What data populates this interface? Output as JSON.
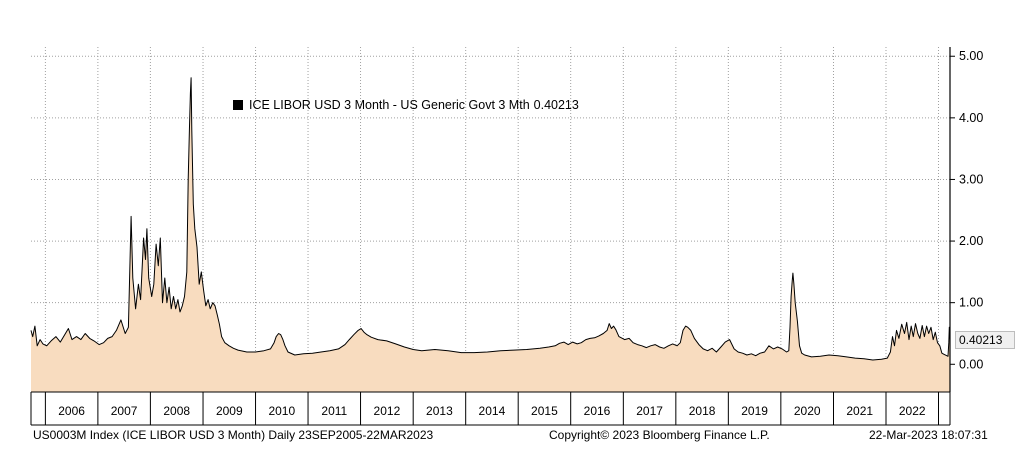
{
  "chart_data": {
    "type": "area",
    "series": [
      {
        "name": "ICE LIBOR USD 3 Month - US Generic Govt 3 Mth",
        "last_value": "0.40213",
        "points": [
          [
            "2005-09-23",
            0.55
          ],
          [
            "2005-10-05",
            0.45
          ],
          [
            "2005-10-20",
            0.62
          ],
          [
            "2005-11-05",
            0.3
          ],
          [
            "2005-11-25",
            0.4
          ],
          [
            "2005-12-15",
            0.33
          ],
          [
            "2006-01-10",
            0.3
          ],
          [
            "2006-02-10",
            0.38
          ],
          [
            "2006-03-15",
            0.45
          ],
          [
            "2006-04-15",
            0.36
          ],
          [
            "2006-05-15",
            0.48
          ],
          [
            "2006-06-10",
            0.58
          ],
          [
            "2006-07-05",
            0.4
          ],
          [
            "2006-08-05",
            0.45
          ],
          [
            "2006-09-05",
            0.4
          ],
          [
            "2006-10-05",
            0.5
          ],
          [
            "2006-11-05",
            0.42
          ],
          [
            "2006-12-05",
            0.38
          ],
          [
            "2007-01-10",
            0.32
          ],
          [
            "2007-02-10",
            0.35
          ],
          [
            "2007-03-10",
            0.42
          ],
          [
            "2007-04-10",
            0.45
          ],
          [
            "2007-05-10",
            0.55
          ],
          [
            "2007-06-10",
            0.72
          ],
          [
            "2007-07-10",
            0.5
          ],
          [
            "2007-08-01",
            0.6
          ],
          [
            "2007-08-20",
            2.4
          ],
          [
            "2007-09-01",
            1.4
          ],
          [
            "2007-09-20",
            0.9
          ],
          [
            "2007-10-10",
            1.3
          ],
          [
            "2007-10-25",
            1.05
          ],
          [
            "2007-11-15",
            2.05
          ],
          [
            "2007-11-28",
            1.7
          ],
          [
            "2007-12-08",
            2.2
          ],
          [
            "2007-12-20",
            1.4
          ],
          [
            "2008-01-10",
            1.1
          ],
          [
            "2008-01-25",
            1.3
          ],
          [
            "2008-02-10",
            1.95
          ],
          [
            "2008-02-25",
            1.6
          ],
          [
            "2008-03-10",
            2.05
          ],
          [
            "2008-03-25",
            1.0
          ],
          [
            "2008-04-10",
            1.4
          ],
          [
            "2008-04-25",
            1.0
          ],
          [
            "2008-05-10",
            1.25
          ],
          [
            "2008-05-25",
            0.9
          ],
          [
            "2008-06-10",
            1.1
          ],
          [
            "2008-06-25",
            0.9
          ],
          [
            "2008-07-10",
            1.05
          ],
          [
            "2008-07-25",
            0.85
          ],
          [
            "2008-08-10",
            0.95
          ],
          [
            "2008-08-25",
            1.1
          ],
          [
            "2008-09-10",
            1.5
          ],
          [
            "2008-09-20",
            3.0
          ],
          [
            "2008-09-28",
            3.8
          ],
          [
            "2008-10-05",
            4.4
          ],
          [
            "2008-10-10",
            4.65
          ],
          [
            "2008-10-15",
            3.8
          ],
          [
            "2008-10-25",
            2.6
          ],
          [
            "2008-11-05",
            2.2
          ],
          [
            "2008-11-20",
            1.9
          ],
          [
            "2008-12-05",
            1.3
          ],
          [
            "2008-12-20",
            1.5
          ],
          [
            "2009-01-05",
            1.2
          ],
          [
            "2009-01-20",
            0.95
          ],
          [
            "2009-02-05",
            1.05
          ],
          [
            "2009-02-20",
            0.9
          ],
          [
            "2009-03-10",
            1.0
          ],
          [
            "2009-03-25",
            0.95
          ],
          [
            "2009-04-10",
            0.8
          ],
          [
            "2009-04-25",
            0.65
          ],
          [
            "2009-05-10",
            0.45
          ],
          [
            "2009-06-01",
            0.35
          ],
          [
            "2009-07-01",
            0.3
          ],
          [
            "2009-08-01",
            0.26
          ],
          [
            "2009-09-01",
            0.23
          ],
          [
            "2009-11-01",
            0.2
          ],
          [
            "2010-01-01",
            0.2
          ],
          [
            "2010-03-01",
            0.22
          ],
          [
            "2010-04-15",
            0.25
          ],
          [
            "2010-05-10",
            0.35
          ],
          [
            "2010-05-25",
            0.45
          ],
          [
            "2010-06-10",
            0.5
          ],
          [
            "2010-06-25",
            0.48
          ],
          [
            "2010-07-10",
            0.4
          ],
          [
            "2010-07-25",
            0.3
          ],
          [
            "2010-08-15",
            0.2
          ],
          [
            "2010-10-01",
            0.15
          ],
          [
            "2010-12-01",
            0.17
          ],
          [
            "2011-02-01",
            0.18
          ],
          [
            "2011-04-01",
            0.2
          ],
          [
            "2011-06-01",
            0.22
          ],
          [
            "2011-08-01",
            0.25
          ],
          [
            "2011-09-15",
            0.32
          ],
          [
            "2011-10-15",
            0.4
          ],
          [
            "2011-11-15",
            0.48
          ],
          [
            "2011-12-15",
            0.55
          ],
          [
            "2012-01-05",
            0.58
          ],
          [
            "2012-01-25",
            0.52
          ],
          [
            "2012-02-15",
            0.48
          ],
          [
            "2012-03-15",
            0.44
          ],
          [
            "2012-05-01",
            0.4
          ],
          [
            "2012-07-01",
            0.38
          ],
          [
            "2012-09-01",
            0.33
          ],
          [
            "2012-11-01",
            0.28
          ],
          [
            "2013-01-01",
            0.24
          ],
          [
            "2013-03-01",
            0.22
          ],
          [
            "2013-06-01",
            0.24
          ],
          [
            "2013-09-01",
            0.22
          ],
          [
            "2013-12-01",
            0.19
          ],
          [
            "2014-03-01",
            0.19
          ],
          [
            "2014-06-01",
            0.2
          ],
          [
            "2014-09-01",
            0.22
          ],
          [
            "2014-12-01",
            0.23
          ],
          [
            "2015-03-01",
            0.24
          ],
          [
            "2015-06-01",
            0.26
          ],
          [
            "2015-08-01",
            0.28
          ],
          [
            "2015-09-15",
            0.3
          ],
          [
            "2015-10-15",
            0.34
          ],
          [
            "2015-11-15",
            0.36
          ],
          [
            "2015-12-15",
            0.32
          ],
          [
            "2016-01-15",
            0.36
          ],
          [
            "2016-02-15",
            0.33
          ],
          [
            "2016-03-15",
            0.35
          ],
          [
            "2016-04-15",
            0.4
          ],
          [
            "2016-05-15",
            0.42
          ],
          [
            "2016-06-15",
            0.43
          ],
          [
            "2016-07-15",
            0.46
          ],
          [
            "2016-08-15",
            0.5
          ],
          [
            "2016-09-10",
            0.55
          ],
          [
            "2016-09-25",
            0.66
          ],
          [
            "2016-10-10",
            0.58
          ],
          [
            "2016-10-25",
            0.62
          ],
          [
            "2016-11-10",
            0.56
          ],
          [
            "2016-12-01",
            0.45
          ],
          [
            "2017-01-10",
            0.4
          ],
          [
            "2017-02-10",
            0.42
          ],
          [
            "2017-03-10",
            0.35
          ],
          [
            "2017-04-10",
            0.32
          ],
          [
            "2017-05-10",
            0.3
          ],
          [
            "2017-06-10",
            0.27
          ],
          [
            "2017-07-10",
            0.3
          ],
          [
            "2017-08-10",
            0.32
          ],
          [
            "2017-09-10",
            0.28
          ],
          [
            "2017-10-10",
            0.26
          ],
          [
            "2017-11-10",
            0.3
          ],
          [
            "2017-12-10",
            0.33
          ],
          [
            "2018-01-10",
            0.3
          ],
          [
            "2018-02-01",
            0.35
          ],
          [
            "2018-02-20",
            0.55
          ],
          [
            "2018-03-10",
            0.62
          ],
          [
            "2018-03-25",
            0.6
          ],
          [
            "2018-04-15",
            0.55
          ],
          [
            "2018-05-10",
            0.42
          ],
          [
            "2018-06-10",
            0.32
          ],
          [
            "2018-07-10",
            0.25
          ],
          [
            "2018-08-10",
            0.22
          ],
          [
            "2018-09-10",
            0.26
          ],
          [
            "2018-10-10",
            0.2
          ],
          [
            "2018-11-10",
            0.28
          ],
          [
            "2018-12-10",
            0.36
          ],
          [
            "2019-01-10",
            0.4
          ],
          [
            "2019-02-10",
            0.25
          ],
          [
            "2019-03-10",
            0.2
          ],
          [
            "2019-04-10",
            0.18
          ],
          [
            "2019-05-10",
            0.15
          ],
          [
            "2019-06-10",
            0.17
          ],
          [
            "2019-07-10",
            0.14
          ],
          [
            "2019-08-10",
            0.18
          ],
          [
            "2019-09-10",
            0.2
          ],
          [
            "2019-10-10",
            0.3
          ],
          [
            "2019-11-10",
            0.25
          ],
          [
            "2019-12-10",
            0.28
          ],
          [
            "2020-01-10",
            0.25
          ],
          [
            "2020-02-10",
            0.2
          ],
          [
            "2020-02-25",
            0.22
          ],
          [
            "2020-03-05",
            0.6
          ],
          [
            "2020-03-12",
            1.1
          ],
          [
            "2020-03-20",
            1.35
          ],
          [
            "2020-03-25",
            1.48
          ],
          [
            "2020-04-01",
            1.3
          ],
          [
            "2020-04-10",
            1.0
          ],
          [
            "2020-04-25",
            0.7
          ],
          [
            "2020-05-10",
            0.3
          ],
          [
            "2020-05-25",
            0.18
          ],
          [
            "2020-06-15",
            0.15
          ],
          [
            "2020-08-01",
            0.12
          ],
          [
            "2020-10-01",
            0.13
          ],
          [
            "2020-12-01",
            0.15
          ],
          [
            "2021-02-01",
            0.14
          ],
          [
            "2021-04-01",
            0.12
          ],
          [
            "2021-06-01",
            0.1
          ],
          [
            "2021-08-01",
            0.09
          ],
          [
            "2021-10-01",
            0.07
          ],
          [
            "2021-12-01",
            0.08
          ],
          [
            "2022-01-10",
            0.1
          ],
          [
            "2022-02-01",
            0.2
          ],
          [
            "2022-02-15",
            0.45
          ],
          [
            "2022-03-01",
            0.3
          ],
          [
            "2022-03-15",
            0.55
          ],
          [
            "2022-04-01",
            0.42
          ],
          [
            "2022-04-20",
            0.65
          ],
          [
            "2022-05-10",
            0.5
          ],
          [
            "2022-05-25",
            0.68
          ],
          [
            "2022-06-10",
            0.4
          ],
          [
            "2022-06-25",
            0.62
          ],
          [
            "2022-07-10",
            0.45
          ],
          [
            "2022-07-25",
            0.66
          ],
          [
            "2022-08-10",
            0.5
          ],
          [
            "2022-08-25",
            0.42
          ],
          [
            "2022-09-10",
            0.63
          ],
          [
            "2022-09-25",
            0.45
          ],
          [
            "2022-10-10",
            0.62
          ],
          [
            "2022-10-25",
            0.5
          ],
          [
            "2022-11-10",
            0.6
          ],
          [
            "2022-11-25",
            0.4
          ],
          [
            "2022-12-10",
            0.52
          ],
          [
            "2022-12-25",
            0.35
          ],
          [
            "2023-01-10",
            0.3
          ],
          [
            "2023-01-25",
            0.18
          ],
          [
            "2023-02-10",
            0.16
          ],
          [
            "2023-02-28",
            0.14
          ],
          [
            "2023-03-08",
            0.13
          ],
          [
            "2023-03-14",
            0.35
          ],
          [
            "2023-03-17",
            0.6
          ],
          [
            "2023-03-22",
            0.40213
          ]
        ]
      }
    ],
    "x_range": [
      "2005-09-23",
      "2023-03-22"
    ],
    "x_tick_labels": [
      "2006",
      "2007",
      "2008",
      "2009",
      "2010",
      "2011",
      "2012",
      "2013",
      "2014",
      "2015",
      "2016",
      "2017",
      "2018",
      "2019",
      "2020",
      "2021",
      "2022"
    ],
    "y_tick_labels": [
      "0.00",
      "1.00",
      "2.00",
      "3.00",
      "4.00",
      "5.00"
    ],
    "ylim": [
      -0.45,
      5.15
    ],
    "y_axis_side": "right",
    "grid": true,
    "legend_position": "top-left"
  },
  "colors": {
    "area_fill": "#f8dcbf",
    "line": "#000000",
    "grid": "#a0a0a0"
  },
  "footer": {
    "left": "US0003M Index (ICE LIBOR USD 3 Month)  Daily 23SEP2005-22MAR2023",
    "center": "Copyright© 2023 Bloomberg Finance L.P.",
    "right": "22-Mar-2023 18:07:31"
  }
}
